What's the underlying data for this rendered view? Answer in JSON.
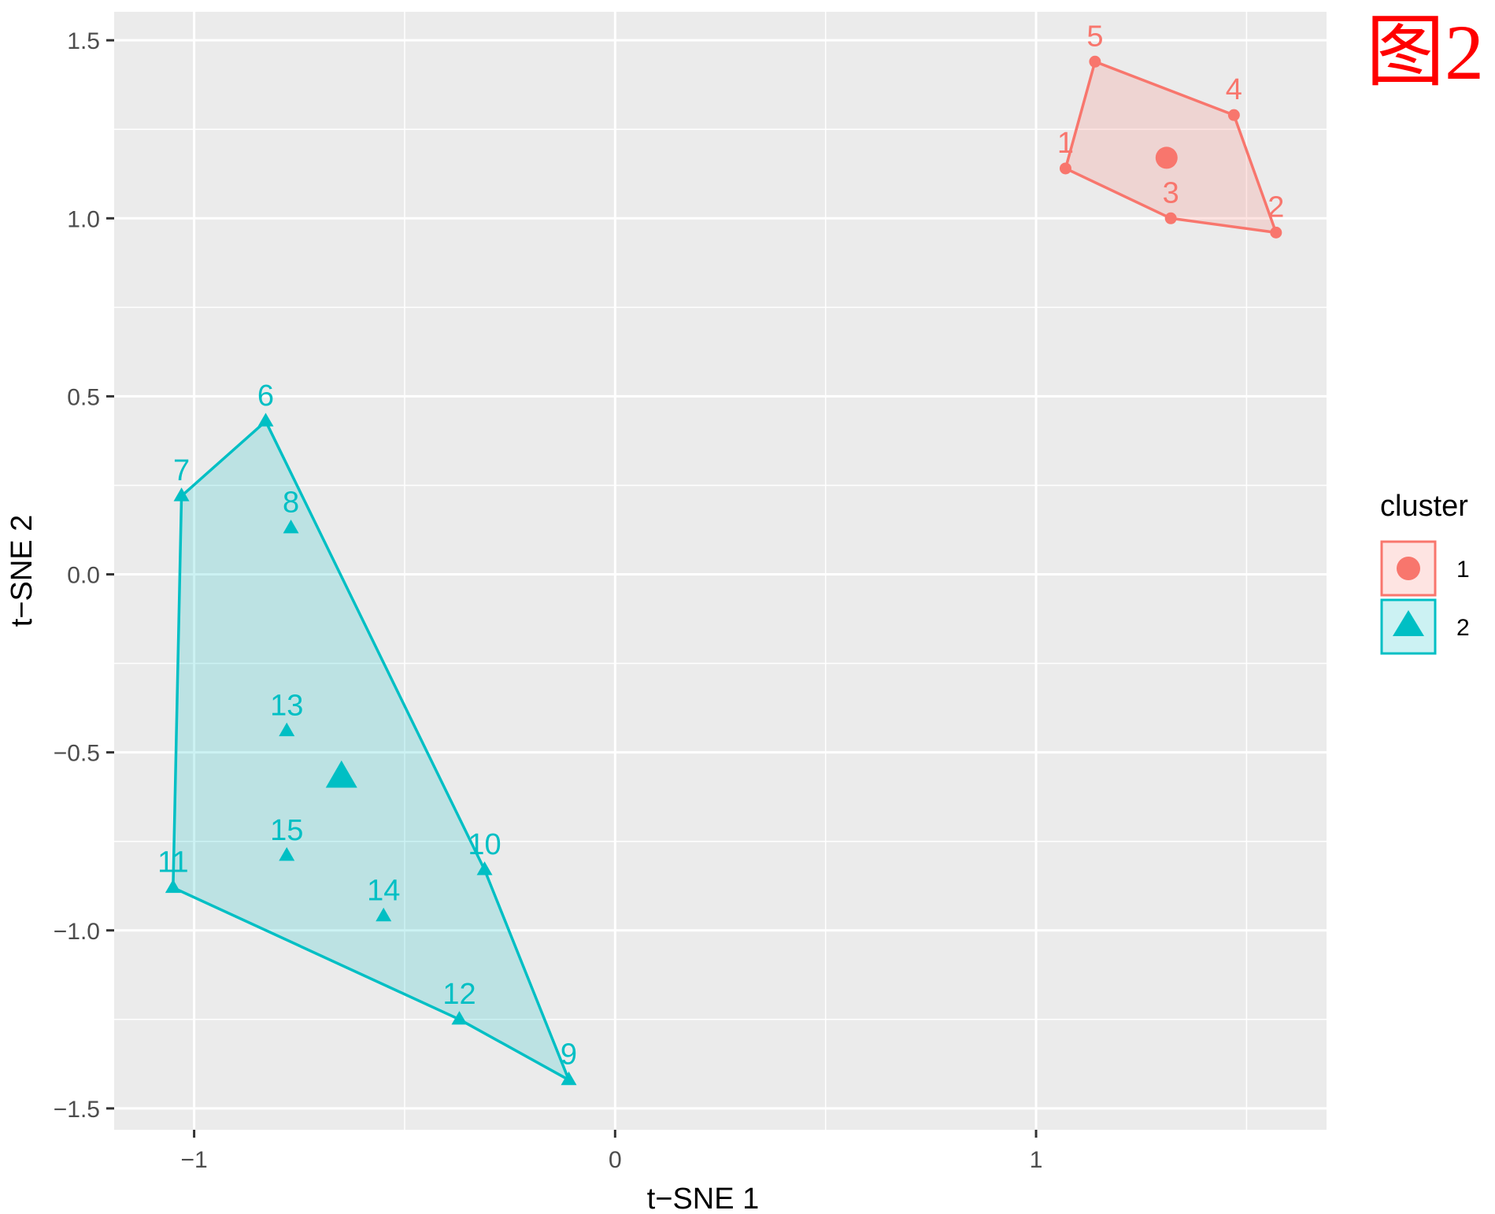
{
  "figure_label": "图2",
  "chart_data": {
    "type": "scatter",
    "xlabel": "t−SNE 1",
    "ylabel": "t−SNE 2",
    "xlim": [
      -1.19,
      1.69
    ],
    "ylim": [
      -1.56,
      1.58
    ],
    "x_ticks": [
      -1,
      0,
      1
    ],
    "x_tick_labels": [
      "−1",
      "0",
      "1"
    ],
    "y_ticks": [
      1.5,
      1.0,
      0.5,
      0.0,
      -0.5,
      -1.0,
      -1.5
    ],
    "y_tick_labels": [
      "1.5",
      "1.0",
      "0.5",
      "0.0",
      "−0.5",
      "−1.0",
      "−1.5"
    ],
    "grid": true,
    "legend": {
      "title": "cluster",
      "position": "right",
      "entries": [
        {
          "label": "1",
          "shape": "circle",
          "color": "#F8766D"
        },
        {
          "label": "2",
          "shape": "triangle",
          "color": "#00BFC4"
        }
      ]
    },
    "series": [
      {
        "name": "1",
        "shape": "circle",
        "color": "#F8766D",
        "points": [
          {
            "label": "1",
            "x": 1.07,
            "y": 1.14
          },
          {
            "label": "2",
            "x": 1.57,
            "y": 0.96
          },
          {
            "label": "3",
            "x": 1.32,
            "y": 1.0
          },
          {
            "label": "4",
            "x": 1.47,
            "y": 1.29
          },
          {
            "label": "5",
            "x": 1.14,
            "y": 1.44
          }
        ],
        "hull": [
          "5",
          "4",
          "2",
          "3",
          "1"
        ],
        "centroid": {
          "x": 1.31,
          "y": 1.17
        }
      },
      {
        "name": "2",
        "shape": "triangle",
        "color": "#00BFC4",
        "points": [
          {
            "label": "6",
            "x": -0.83,
            "y": 0.43
          },
          {
            "label": "7",
            "x": -1.03,
            "y": 0.22
          },
          {
            "label": "8",
            "x": -0.77,
            "y": 0.13
          },
          {
            "label": "9",
            "x": -0.11,
            "y": -1.42
          },
          {
            "label": "10",
            "x": -0.31,
            "y": -0.83
          },
          {
            "label": "11",
            "x": -1.05,
            "y": -0.88
          },
          {
            "label": "12",
            "x": -0.37,
            "y": -1.25
          },
          {
            "label": "13",
            "x": -0.78,
            "y": -0.44
          },
          {
            "label": "14",
            "x": -0.55,
            "y": -0.96
          },
          {
            "label": "15",
            "x": -0.78,
            "y": -0.79
          }
        ],
        "hull": [
          "6",
          "10",
          "9",
          "12",
          "11",
          "7"
        ],
        "centroid": {
          "x": -0.65,
          "y": -0.57
        }
      }
    ]
  }
}
